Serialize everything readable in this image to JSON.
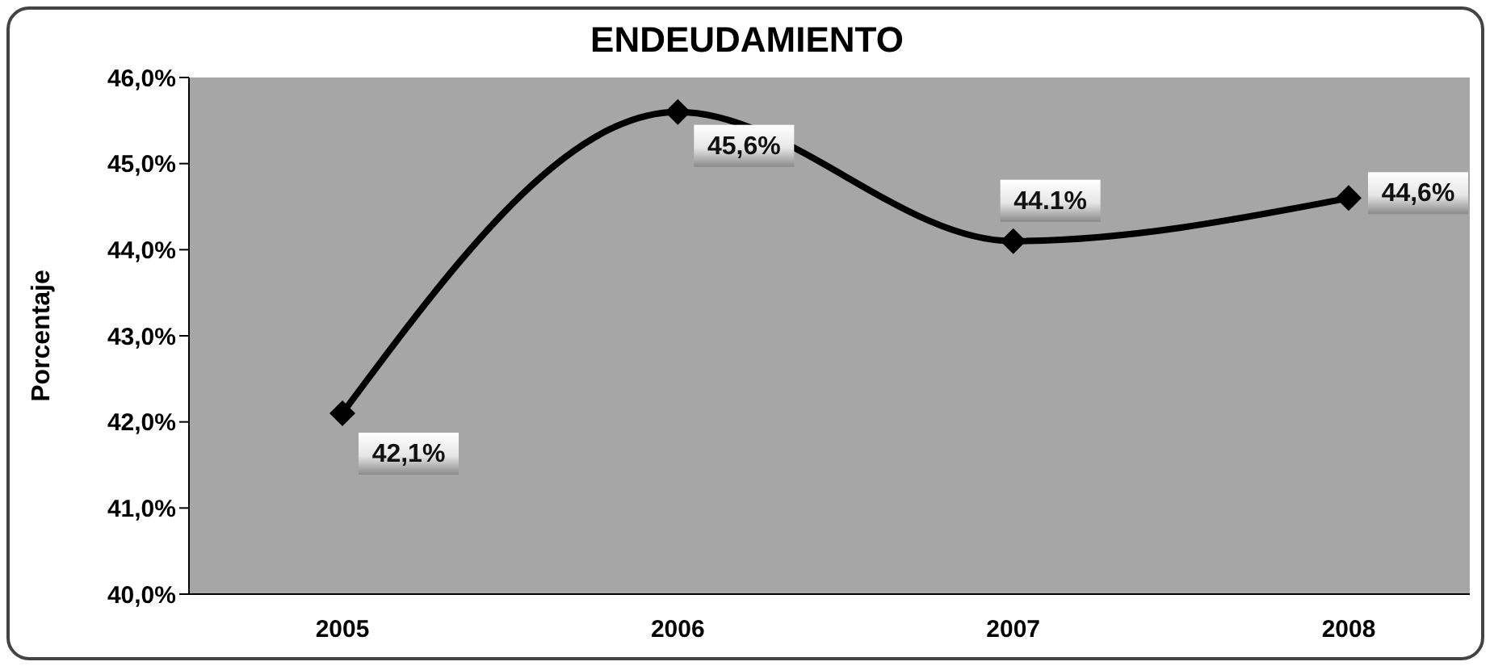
{
  "chart_data": {
    "type": "line",
    "title": "ENDEUDAMIENTO",
    "ylabel": "Porcentaje",
    "categories": [
      "2005",
      "2006",
      "2007",
      "2008"
    ],
    "series": [
      {
        "color": "#000000",
        "values": [
          42.1,
          45.6,
          44.1,
          44.6
        ],
        "value_labels": [
          "42,1%",
          "45,6%",
          "44.1%",
          "44,6%"
        ]
      }
    ],
    "ylim": [
      40,
      46
    ],
    "yticks": [
      {
        "value": 40,
        "label": "40,0%"
      },
      {
        "value": 41,
        "label": "41,0%"
      },
      {
        "value": 42,
        "label": "42,0%"
      },
      {
        "value": 43,
        "label": "43,0%"
      },
      {
        "value": 44,
        "label": "44,0%"
      },
      {
        "value": 45,
        "label": "45,0%"
      },
      {
        "value": 46,
        "label": "46,0%"
      }
    ],
    "grid": false,
    "legend": false,
    "marker": "diamond",
    "line_style": "solid"
  }
}
